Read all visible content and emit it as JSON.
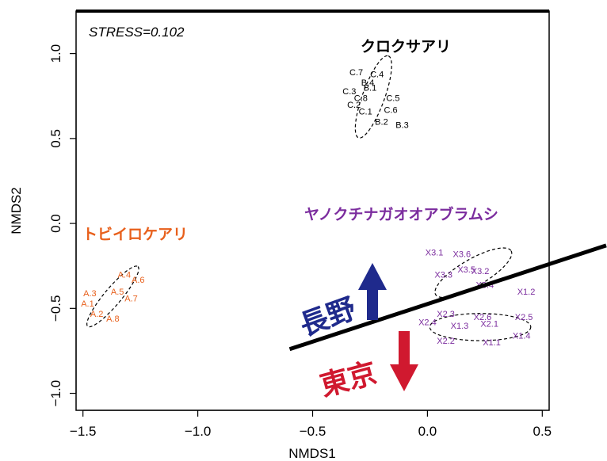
{
  "chart_data": {
    "type": "scatter",
    "stress_label": "STRESS=0.102",
    "xlabel": "NMDS1",
    "ylabel": "NMDS2",
    "xlim": [
      -1.53,
      0.53
    ],
    "ylim": [
      -1.1,
      1.25
    ],
    "x_ticks": [
      -1.5,
      -1.0,
      -0.5,
      0.0,
      0.5
    ],
    "x_tick_labels": [
      "−1.5",
      "−1.0",
      "−0.5",
      "0.0",
      "0.5"
    ],
    "y_ticks": [
      -1.0,
      -0.5,
      0.0,
      0.5,
      1.0
    ],
    "y_tick_labels": [
      "−1.0",
      "−0.5",
      "0.0",
      "0.5",
      "1.0"
    ],
    "groups": [
      {
        "label": "クロクサアリ",
        "color": "#000000",
        "points": [
          {
            "id": "C.7",
            "x": -0.31,
            "y": 0.89
          },
          {
            "id": "C.4",
            "x": -0.22,
            "y": 0.88
          },
          {
            "id": "B.4",
            "x": -0.26,
            "y": 0.83
          },
          {
            "id": "B.1",
            "x": -0.25,
            "y": 0.8
          },
          {
            "id": "C.3",
            "x": -0.34,
            "y": 0.78
          },
          {
            "id": "C.8",
            "x": -0.29,
            "y": 0.74
          },
          {
            "id": "C.5",
            "x": -0.15,
            "y": 0.74
          },
          {
            "id": "C.2",
            "x": -0.32,
            "y": 0.7
          },
          {
            "id": "C.6",
            "x": -0.16,
            "y": 0.67
          },
          {
            "id": "C.1",
            "x": -0.27,
            "y": 0.66
          },
          {
            "id": "B.2",
            "x": -0.2,
            "y": 0.6
          },
          {
            "id": "B.3",
            "x": -0.11,
            "y": 0.58
          }
        ],
        "ellipse": {
          "cx": -0.235,
          "cy": 0.745,
          "rx": 0.19,
          "ry": 0.065,
          "angle_deg": -70
        }
      },
      {
        "label": "トビイロケアリ",
        "color": "#e8601c",
        "points": [
          {
            "id": "A.4",
            "x": -1.32,
            "y": -0.3
          },
          {
            "id": "A.6",
            "x": -1.26,
            "y": -0.33
          },
          {
            "id": "A.3",
            "x": -1.47,
            "y": -0.41
          },
          {
            "id": "A.5",
            "x": -1.35,
            "y": -0.4
          },
          {
            "id": "A.7",
            "x": -1.29,
            "y": -0.44
          },
          {
            "id": "A.1",
            "x": -1.48,
            "y": -0.47
          },
          {
            "id": "A.2",
            "x": -1.44,
            "y": -0.53
          },
          {
            "id": "A.8",
            "x": -1.37,
            "y": -0.56
          }
        ],
        "ellipse": {
          "cx": -1.37,
          "cy": -0.43,
          "rx": 0.17,
          "ry": 0.05,
          "angle_deg": -50
        }
      },
      {
        "label": "ヤノクチナガオオアブラムシ",
        "color": "#7b2c9e",
        "points": [
          {
            "id": "X3.1",
            "x": 0.03,
            "y": -0.17
          },
          {
            "id": "X3.6",
            "x": 0.15,
            "y": -0.18
          },
          {
            "id": "X3.5",
            "x": 0.17,
            "y": -0.27
          },
          {
            "id": "X3.2",
            "x": 0.23,
            "y": -0.28
          },
          {
            "id": "X3.3",
            "x": 0.07,
            "y": -0.3
          },
          {
            "id": "X3.4",
            "x": 0.25,
            "y": -0.36
          },
          {
            "id": "X1.2",
            "x": 0.43,
            "y": -0.4
          },
          {
            "id": "X2.3",
            "x": 0.08,
            "y": -0.53
          },
          {
            "id": "X2.6",
            "x": 0.24,
            "y": -0.55
          },
          {
            "id": "X2.5",
            "x": 0.42,
            "y": -0.55
          },
          {
            "id": "X2.4",
            "x": 0.0,
            "y": -0.58
          },
          {
            "id": "X1.3",
            "x": 0.14,
            "y": -0.6
          },
          {
            "id": "X2.1",
            "x": 0.27,
            "y": -0.59
          },
          {
            "id": "X1.4",
            "x": 0.41,
            "y": -0.66
          },
          {
            "id": "X2.2",
            "x": 0.08,
            "y": -0.69
          },
          {
            "id": "X1.1",
            "x": 0.28,
            "y": -0.7
          }
        ],
        "ellipses": [
          {
            "cx": 0.2,
            "cy": -0.29,
            "rx": 0.19,
            "ry": 0.08,
            "angle_deg": -30
          },
          {
            "cx": 0.23,
            "cy": -0.61,
            "rx": 0.22,
            "ry": 0.08,
            "angle_deg": 0
          }
        ]
      }
    ],
    "divider": {
      "x1": -0.6,
      "y1": -0.74,
      "x2": 0.8,
      "y2": -0.12,
      "color": "#000000"
    },
    "annotations": [
      {
        "text": "長野",
        "color": "#1f2a8c",
        "arrow": "up"
      },
      {
        "text": "東京",
        "color": "#d0192f",
        "arrow": "down"
      }
    ]
  }
}
